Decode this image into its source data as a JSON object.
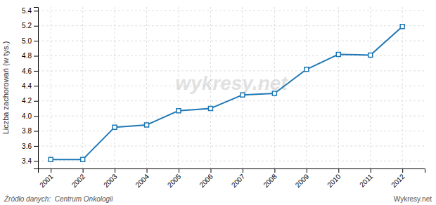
{
  "chart_data": {
    "type": "line",
    "ylabel": "Liczba zachorowań (w tys.)",
    "x": [
      2001,
      2002,
      2003,
      2004,
      2005,
      2006,
      2007,
      2008,
      2009,
      2010,
      2011,
      2012
    ],
    "values": [
      3.42,
      3.42,
      3.85,
      3.88,
      4.07,
      4.1,
      4.28,
      4.3,
      4.62,
      4.82,
      4.81,
      5.19
    ],
    "xlim": [
      2000.6,
      2012.7
    ],
    "xticks": [
      2001,
      2002,
      2003,
      2004,
      2005,
      2006,
      2007,
      2008,
      2009,
      2010,
      2011,
      2012
    ],
    "ylim": [
      3.3,
      5.45
    ],
    "yticks": [
      3.4,
      3.6,
      3.8,
      {
        "value": 4,
        "label": "4.0"
      },
      4.2,
      4.4,
      4.6,
      4.8,
      {
        "value": 5,
        "label": "5.0"
      },
      5.2,
      5.4
    ],
    "marker": "square",
    "grid": true,
    "annotations": [
      "Źródło danych:  Centrum Onkologii",
      "Wykresy.net",
      "wykresy.net"
    ]
  }
}
